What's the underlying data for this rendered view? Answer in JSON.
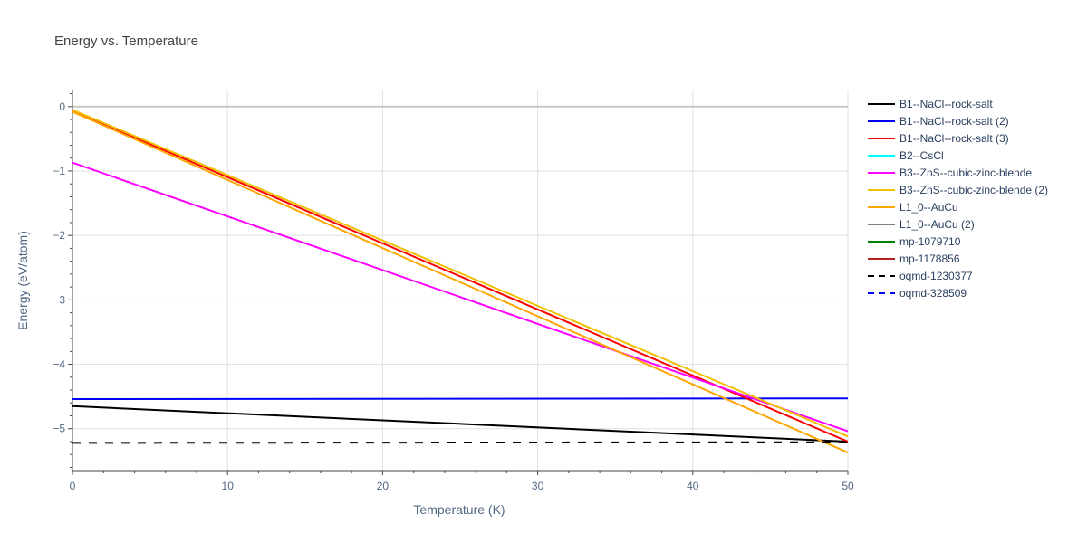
{
  "chart_data": {
    "type": "line",
    "title": "Energy vs. Temperature",
    "xlabel": "Temperature (K)",
    "ylabel": "Energy (eV/atom)",
    "xlim": [
      0,
      50
    ],
    "ylim": [
      -5.65,
      0.25
    ],
    "x_ticks": [
      0,
      10,
      20,
      30,
      40,
      50
    ],
    "y_ticks": [
      0,
      -1,
      -2,
      -3,
      -4,
      -5
    ],
    "x_tick_labels": [
      "0",
      "10",
      "20",
      "30",
      "40",
      "50"
    ],
    "y_tick_labels": [
      "0",
      "−1",
      "−2",
      "−3",
      "−4",
      "−5"
    ],
    "grid": true,
    "legend_position": "right",
    "series": [
      {
        "name": "B1--NaCl--rock-salt",
        "color": "#000000",
        "dash": "solid",
        "x": [
          0,
          50
        ],
        "y": [
          -4.65,
          -5.2
        ]
      },
      {
        "name": "B1--NaCl--rock-salt (2)",
        "color": "#0000ff",
        "dash": "solid",
        "x": [
          0,
          50
        ],
        "y": [
          -4.54,
          -4.53
        ]
      },
      {
        "name": "B1--NaCl--rock-salt (3)",
        "color": "#ff0000",
        "dash": "solid",
        "x": [
          0,
          50
        ],
        "y": [
          -0.07,
          -5.2
        ]
      },
      {
        "name": "B2--CsCl",
        "color": "#00ffff",
        "dash": "solid",
        "x": [],
        "y": []
      },
      {
        "name": "B3--ZnS--cubic-zinc-blende",
        "color": "#ff00ff",
        "dash": "solid",
        "x": [
          0,
          50
        ],
        "y": [
          -0.87,
          -5.04
        ]
      },
      {
        "name": "B3--ZnS--cubic-zinc-blende (2)",
        "color": "#f0c000",
        "dash": "solid",
        "x": [
          0,
          50
        ],
        "y": [
          -0.05,
          -5.12
        ]
      },
      {
        "name": "L1_0--AuCu",
        "color": "#ffa500",
        "dash": "solid",
        "x": [
          0,
          50
        ],
        "y": [
          -0.08,
          -5.37
        ]
      },
      {
        "name": "L1_0--AuCu (2)",
        "color": "#808080",
        "dash": "solid",
        "x": [],
        "y": []
      },
      {
        "name": "mp-1079710",
        "color": "#008000",
        "dash": "solid",
        "x": [],
        "y": []
      },
      {
        "name": "mp-1178856",
        "color": "#b22222",
        "dash": "solid",
        "x": [],
        "y": []
      },
      {
        "name": "oqmd-1230377",
        "color": "#000000",
        "dash": "dash",
        "x": [
          0,
          50
        ],
        "y": [
          -5.22,
          -5.21
        ]
      },
      {
        "name": "oqmd-328509",
        "color": "#0000ff",
        "dash": "dash",
        "x": [],
        "y": []
      }
    ]
  }
}
